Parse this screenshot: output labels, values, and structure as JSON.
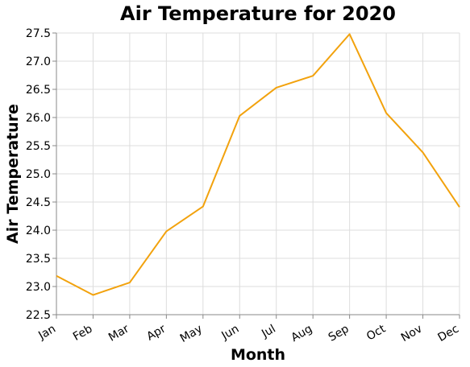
{
  "chart_data": {
    "type": "line",
    "title": "Air Temperature for 2020",
    "xlabel": "Month",
    "ylabel": "Air Temperature",
    "categories": [
      "Jan",
      "Feb",
      "Mar",
      "Apr",
      "May",
      "Jun",
      "Jul",
      "Aug",
      "Sep",
      "Oct",
      "Nov",
      "Dec"
    ],
    "series": [
      {
        "values": [
          23.19,
          22.85,
          23.07,
          23.98,
          24.42,
          26.03,
          26.53,
          26.74,
          27.48,
          26.08,
          25.38,
          24.41
        ],
        "color": "#f2a20d"
      }
    ],
    "ylim": [
      22.5,
      27.5
    ],
    "yticks": [
      22.5,
      23.0,
      23.5,
      24.0,
      24.5,
      25.0,
      25.5,
      26.0,
      26.5,
      27.0,
      27.5
    ],
    "grid": true
  }
}
